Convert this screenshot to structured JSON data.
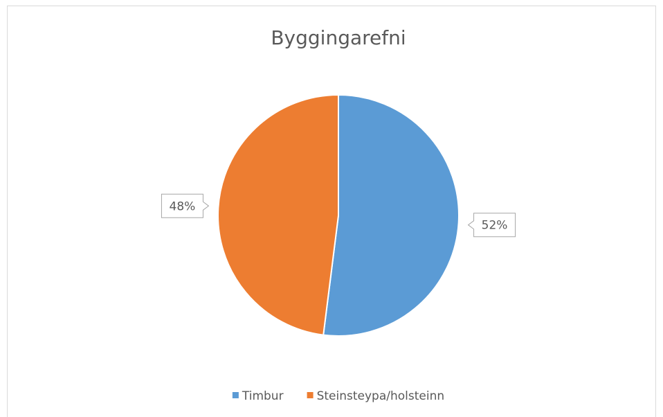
{
  "chart_data": {
    "type": "pie",
    "title": "Byggingarefni",
    "categories": [
      "Timbur",
      "Steinsteypa/holsteinn"
    ],
    "values": [
      52,
      48
    ],
    "value_labels": [
      "52%",
      "48%"
    ],
    "colors": [
      "#5b9bd5",
      "#ed7d31"
    ],
    "legend": "bottom"
  }
}
